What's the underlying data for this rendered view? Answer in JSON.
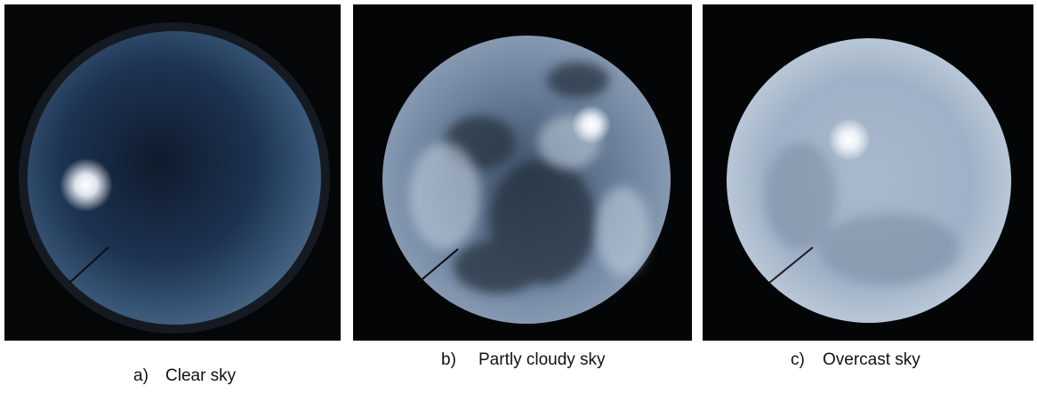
{
  "panels": [
    {
      "label": "a)",
      "caption": "Clear sky"
    },
    {
      "label": "b)",
      "caption": "Partly cloudy sky"
    },
    {
      "label": "c)",
      "caption": "Overcast sky"
    }
  ]
}
